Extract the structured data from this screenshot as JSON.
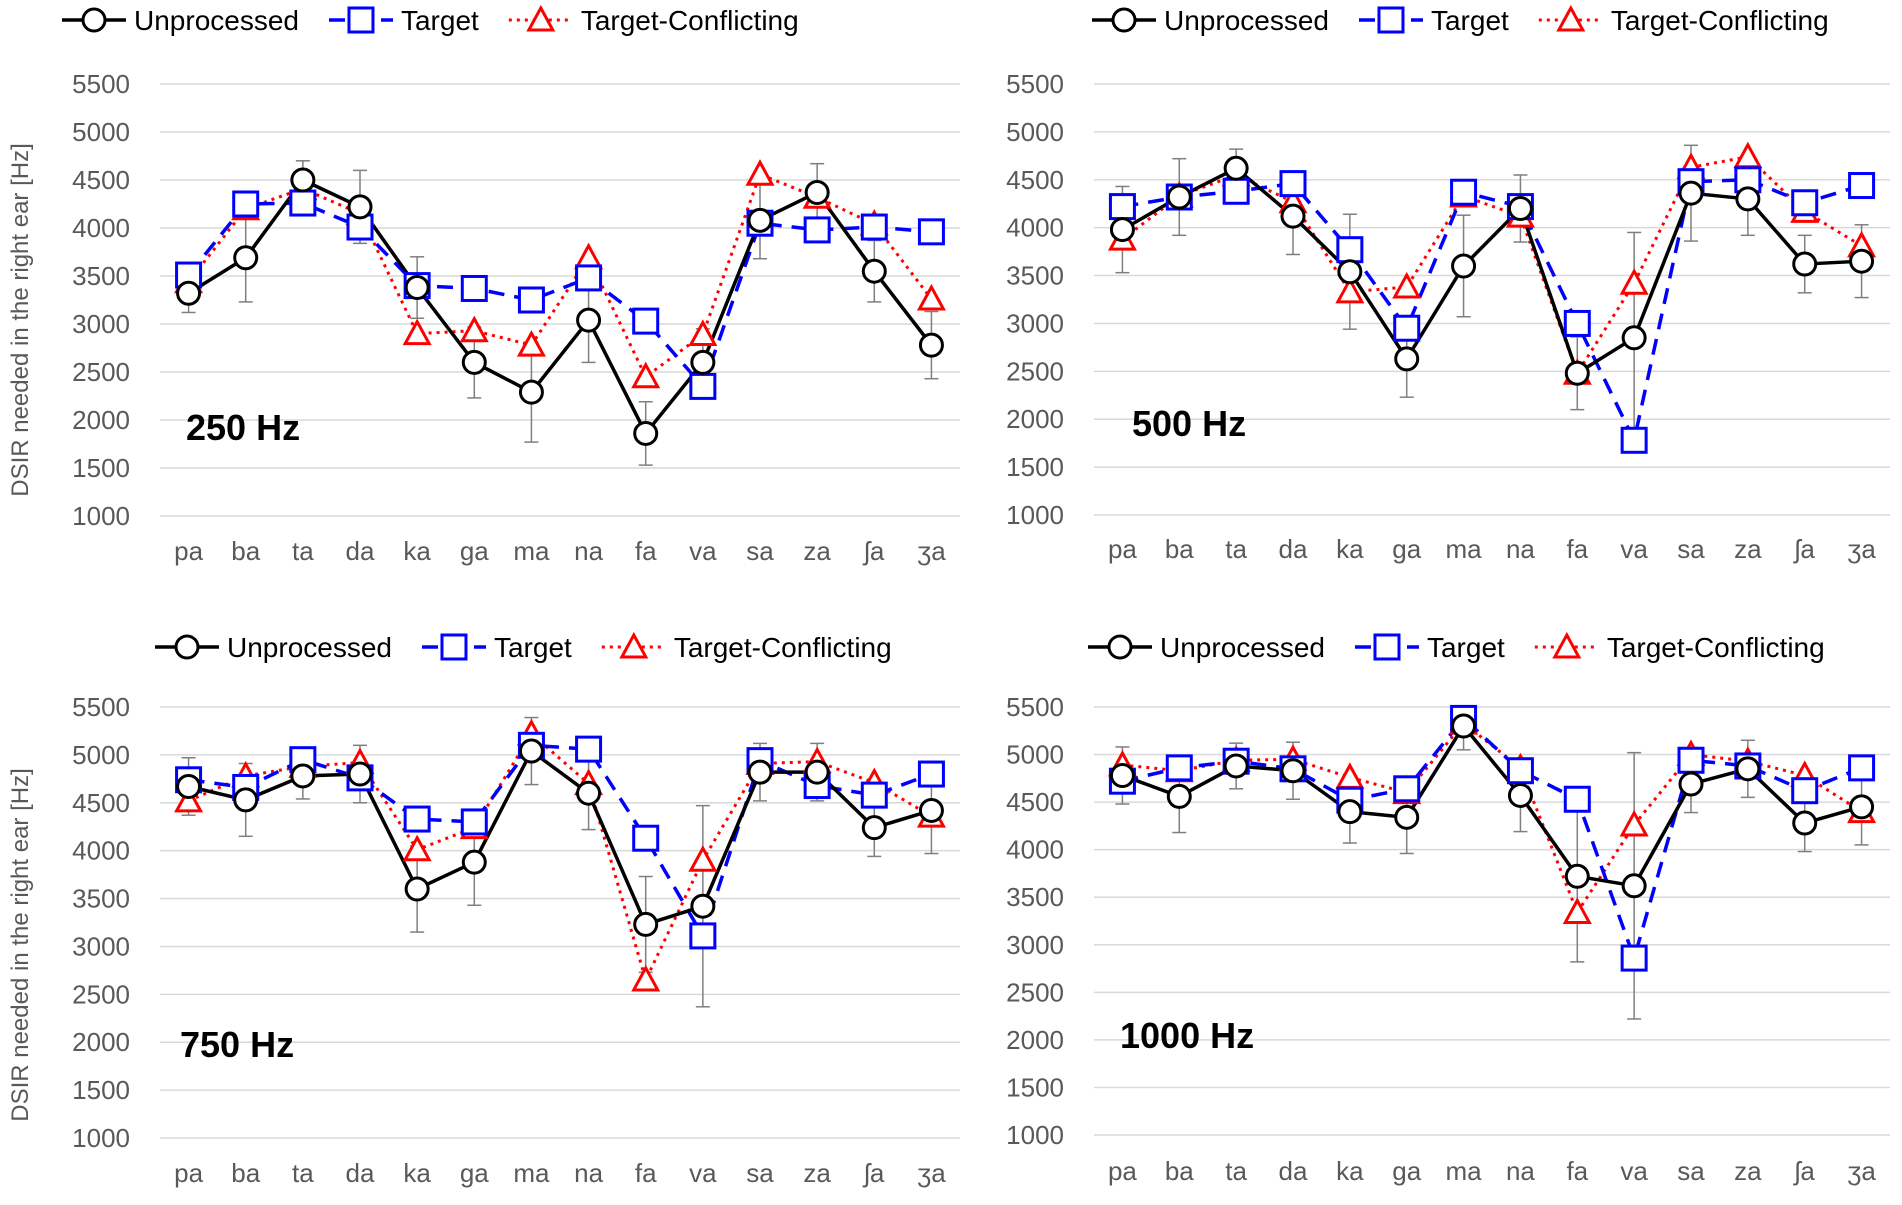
{
  "chart_data": [
    {
      "type": "line",
      "title": "250 Hz",
      "ylabel": "DSIR needed in the right ear [Hz]",
      "xlabel": "",
      "ylim": [
        1000,
        5500
      ],
      "yticks": [
        1000,
        1500,
        2000,
        2500,
        3000,
        3500,
        4000,
        4500,
        5000,
        5500
      ],
      "categories": [
        "pa",
        "ba",
        "ta",
        "da",
        "ka",
        "ga",
        "ma",
        "na",
        "fa",
        "va",
        "sa",
        "za",
        "ʃa",
        "ʒa"
      ],
      "legend": "top",
      "series": [
        {
          "name": "Unprocessed",
          "marker": "circle",
          "values": [
            3320,
            3690,
            4500,
            4220,
            3380,
            2600,
            2290,
            3040,
            1860,
            2600,
            4080,
            4370,
            3550,
            2780
          ],
          "errors": [
            200,
            460,
            200,
            380,
            320,
            370,
            520,
            440,
            330,
            350,
            400,
            300,
            320,
            350
          ]
        },
        {
          "name": "Target",
          "marker": "square",
          "values": [
            3510,
            4250,
            4260,
            4010,
            3400,
            3370,
            3250,
            3480,
            3030,
            2350,
            4050,
            3980,
            4010,
            3960
          ]
        },
        {
          "name": "Target-Conflicting",
          "marker": "triangle",
          "values": [
            3440,
            4200,
            4410,
            4150,
            2900,
            2930,
            2780,
            3690,
            2450,
            2890,
            4560,
            4320,
            4040,
            3260
          ]
        }
      ]
    },
    {
      "type": "line",
      "title": "500 Hz",
      "ylabel": "",
      "xlabel": "",
      "ylim": [
        1000,
        5500
      ],
      "yticks": [
        1000,
        1500,
        2000,
        2500,
        3000,
        3500,
        4000,
        4500,
        5000,
        5500
      ],
      "categories": [
        "pa",
        "ba",
        "ta",
        "da",
        "ka",
        "ga",
        "ma",
        "na",
        "fa",
        "va",
        "sa",
        "za",
        "ʃa",
        "ʒa"
      ],
      "legend": "top",
      "series": [
        {
          "name": "Unprocessed",
          "marker": "circle",
          "values": [
            3980,
            4320,
            4620,
            4120,
            3540,
            2630,
            3600,
            4200,
            2480,
            2850,
            4360,
            4300,
            3620,
            3650
          ],
          "errors": [
            450,
            400,
            200,
            400,
            600,
            400,
            530,
            350,
            380,
            1100,
            500,
            380,
            300,
            380
          ]
        },
        {
          "name": "Target",
          "marker": "square",
          "values": [
            4220,
            4320,
            4380,
            4460,
            3770,
            2950,
            4370,
            4220,
            3000,
            1780,
            4480,
            4500,
            4260,
            4440
          ]
        },
        {
          "name": "Target-Conflicting",
          "marker": "triangle",
          "values": [
            3880,
            4330,
            4550,
            4270,
            3330,
            3380,
            4330,
            4120,
            2480,
            3420,
            4630,
            4740,
            4170,
            3810
          ]
        }
      ]
    },
    {
      "type": "line",
      "title": "750 Hz",
      "ylabel": "DSIR needed in the right ear [Hz]",
      "xlabel": "",
      "ylim": [
        1000,
        5500
      ],
      "yticks": [
        1000,
        1500,
        2000,
        2500,
        3000,
        3500,
        4000,
        4500,
        5000,
        5500
      ],
      "categories": [
        "pa",
        "ba",
        "ta",
        "da",
        "ka",
        "ga",
        "ma",
        "na",
        "fa",
        "va",
        "sa",
        "za",
        "ʃa",
        "ʒa"
      ],
      "legend": "top",
      "series": [
        {
          "name": "Unprocessed",
          "marker": "circle",
          "values": [
            4670,
            4530,
            4780,
            4800,
            3600,
            3880,
            5040,
            4600,
            3230,
            3420,
            4820,
            4820,
            4240,
            4420
          ],
          "errors": [
            300,
            380,
            240,
            300,
            450,
            450,
            350,
            380,
            500,
            1050,
            300,
            300,
            300,
            450
          ]
        },
        {
          "name": "Target",
          "marker": "square",
          "values": [
            4740,
            4660,
            4950,
            4760,
            4330,
            4300,
            5100,
            5060,
            4130,
            3110,
            4940,
            4680,
            4580,
            4800
          ]
        },
        {
          "name": "Target-Conflicting",
          "marker": "triangle",
          "values": [
            4520,
            4780,
            4880,
            4920,
            4010,
            4240,
            5220,
            4700,
            2650,
            3900,
            4910,
            4930,
            4710,
            4360
          ]
        }
      ]
    },
    {
      "type": "line",
      "title": "1000 Hz",
      "ylabel": "",
      "xlabel": "",
      "ylim": [
        1000,
        5500
      ],
      "yticks": [
        1000,
        1500,
        2000,
        2500,
        3000,
        3500,
        4000,
        4500,
        5000,
        5500
      ],
      "categories": [
        "pa",
        "ba",
        "ta",
        "da",
        "ka",
        "ga",
        "ma",
        "na",
        "fa",
        "va",
        "sa",
        "za",
        "ʃa",
        "ʒa"
      ],
      "legend": "top",
      "series": [
        {
          "name": "Unprocessed",
          "marker": "circle",
          "values": [
            4780,
            4560,
            4880,
            4830,
            4400,
            4340,
            5300,
            4570,
            3720,
            3620,
            4690,
            4850,
            4280,
            4450
          ],
          "errors": [
            300,
            380,
            240,
            300,
            330,
            380,
            250,
            380,
            900,
            1400,
            300,
            300,
            300,
            400
          ]
        },
        {
          "name": "Target",
          "marker": "square",
          "values": [
            4720,
            4860,
            4930,
            4850,
            4520,
            4640,
            5380,
            4830,
            4530,
            2860,
            4940,
            4880,
            4620,
            4860
          ]
        },
        {
          "name": "Target-Conflicting",
          "marker": "triangle",
          "values": [
            4890,
            4830,
            4940,
            4950,
            4760,
            4600,
            5330,
            4860,
            3340,
            4260,
            5000,
            4930,
            4780,
            4400
          ]
        }
      ]
    }
  ],
  "colors": {
    "Unprocessed": "#000000",
    "Target": "#0000ff",
    "Target-Conflicting": "#ff0000",
    "gridline": "#d9d9d9",
    "errorbar": "#7f7f7f",
    "text": "#595959"
  }
}
